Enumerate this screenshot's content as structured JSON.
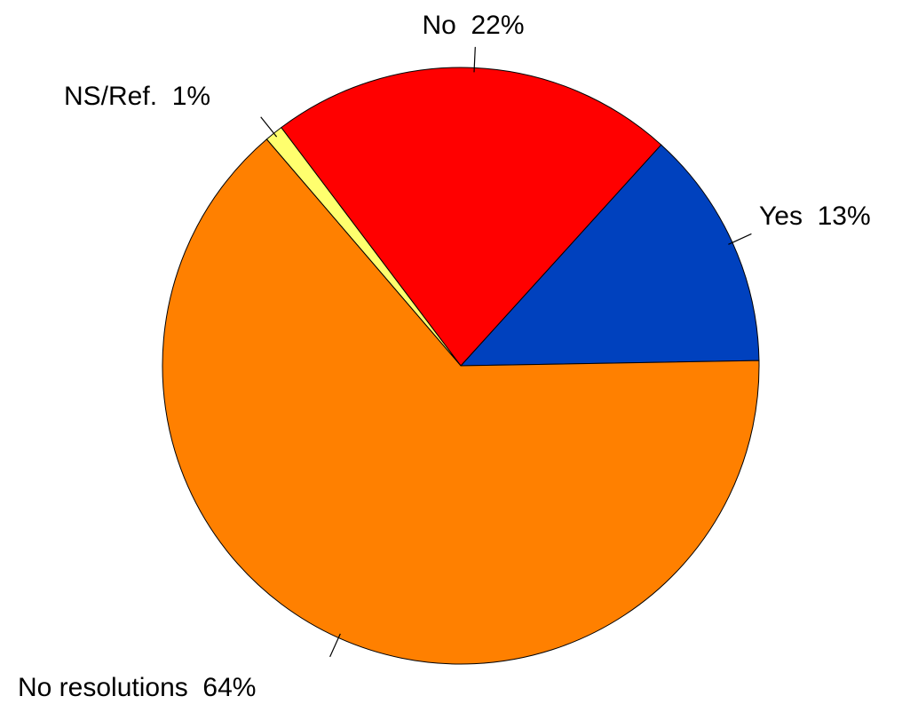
{
  "chart_data": {
    "type": "pie",
    "title": "",
    "slices": [
      {
        "label": "Yes",
        "value": 13,
        "display": "Yes  13%",
        "color": "#0041BE"
      },
      {
        "label": "No",
        "value": 22,
        "display": "No  22%",
        "color": "#FF0000"
      },
      {
        "label": "NS/Ref.",
        "value": 1,
        "display": "NS/Ref.  1%",
        "color": "#FFFF6E"
      },
      {
        "label": "No resolutions",
        "value": 64,
        "display": "No resolutions  64%",
        "color": "#FF8000"
      }
    ],
    "legend": "none"
  }
}
